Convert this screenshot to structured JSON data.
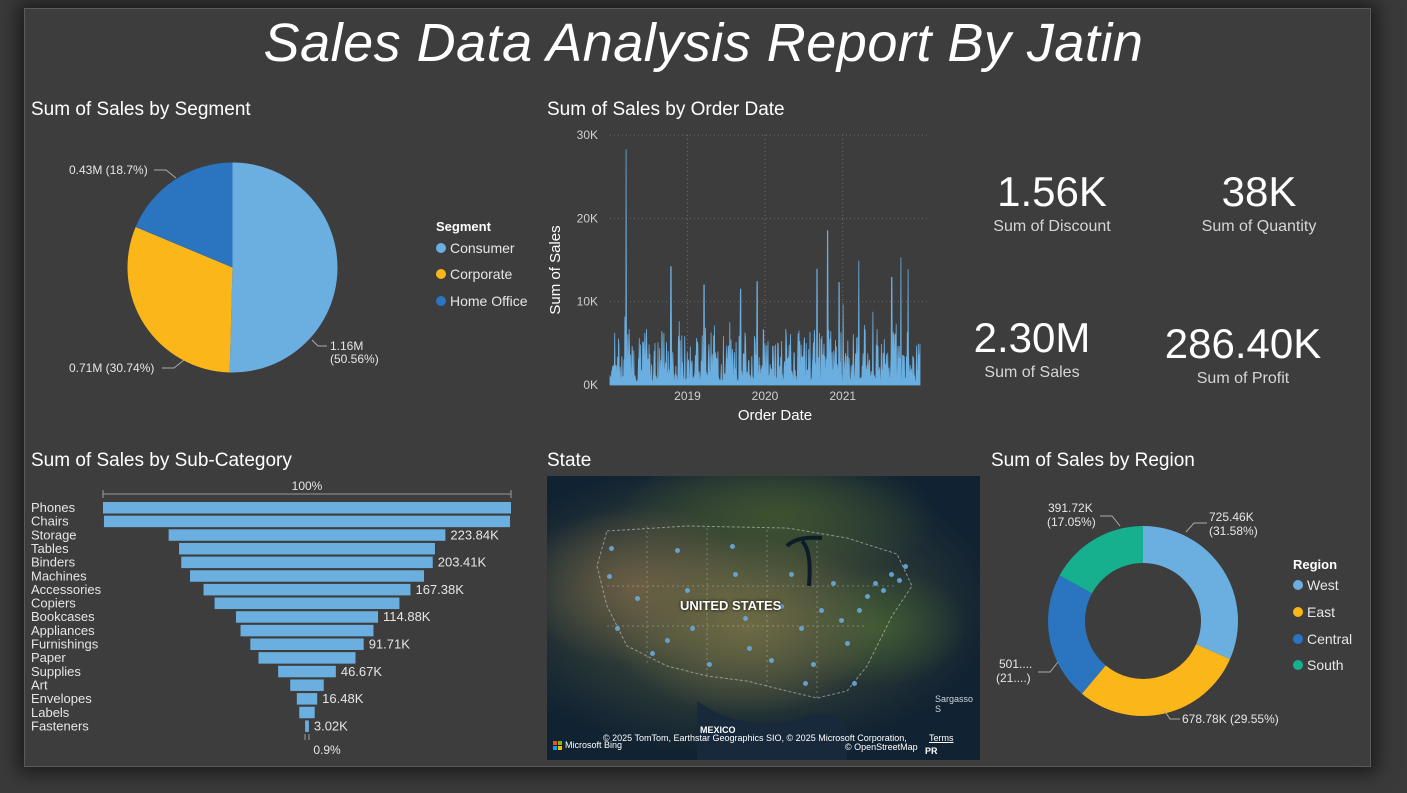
{
  "report_title": "Sales Data Analysis Report By Jatin",
  "segment_chart": {
    "title": "Sum of Sales by Segment",
    "legend_title": "Segment",
    "chart_data": {
      "type": "pie",
      "categories": [
        "Consumer",
        "Corporate",
        "Home Office"
      ],
      "values": [
        1.16,
        0.71,
        0.43
      ],
      "percents": [
        50.56,
        30.74,
        18.7
      ],
      "unit": "M",
      "colors": [
        "#6baee0",
        "#fbb619",
        "#2a74c0"
      ],
      "labels": {
        "consumer_line1": "1.16M",
        "consumer_line2": "(50.56%)",
        "corporate": "0.71M (30.74%)",
        "home_office": "0.43M (18.7%)"
      },
      "legend": "right"
    }
  },
  "order_date_chart": {
    "title": "Sum of Sales by Order Date",
    "chart_data": {
      "type": "area",
      "xlabel": "Order Date",
      "ylabel": "Sum of Sales",
      "x_ticks": [
        "2019",
        "2020",
        "2021"
      ],
      "y_ticks": [
        "0K",
        "10K",
        "20K",
        "30K"
      ],
      "ylim": [
        0,
        30000
      ],
      "xlim": [
        "2018-01-01",
        "2021-12-31"
      ],
      "color": "#6baee0",
      "grid": true,
      "peaks": [
        {
          "x": "2018-03-18",
          "y": 28300
        },
        {
          "x": "2018-10-15",
          "y": 14200
        },
        {
          "x": "2019-03-20",
          "y": 12000
        },
        {
          "x": "2019-09-08",
          "y": 11500
        },
        {
          "x": "2019-11-25",
          "y": 12400
        },
        {
          "x": "2020-09-02",
          "y": 13900
        },
        {
          "x": "2020-10-22",
          "y": 18500
        },
        {
          "x": "2020-12-15",
          "y": 12300
        },
        {
          "x": "2021-03-18",
          "y": 14900
        },
        {
          "x": "2021-08-20",
          "y": 12900
        },
        {
          "x": "2021-10-02",
          "y": 15300
        },
        {
          "x": "2021-11-05",
          "y": 13900
        }
      ]
    }
  },
  "kpis": [
    {
      "value": "1.56K",
      "label": "Sum of Discount"
    },
    {
      "value": "38K",
      "label": "Sum of Quantity"
    },
    {
      "value": "2.30M",
      "label": "Sum of Sales"
    },
    {
      "value": "286.40K",
      "label": "Sum of Profit"
    }
  ],
  "subcategory_chart": {
    "title": "Sum of Sales by Sub-Category",
    "top_label": "100%",
    "bottom_label": "0.9%",
    "chart_data": {
      "type": "bar",
      "orientation": "funnel",
      "categories": [
        "Phones",
        "Chairs",
        "Storage",
        "Tables",
        "Binders",
        "Machines",
        "Accessories",
        "Copiers",
        "Bookcases",
        "Appliances",
        "Furnishings",
        "Paper",
        "Supplies",
        "Art",
        "Envelopes",
        "Labels",
        "Fasteners"
      ],
      "values": [
        330007,
        328449,
        223844,
        206966,
        203413,
        189239,
        167380,
        149528,
        114880,
        107532,
        91705,
        78479,
        46674,
        27119,
        16476,
        12486,
        3024
      ],
      "data_labels": [
        "",
        "",
        "223.84K",
        "",
        "203.41K",
        "",
        "167.38K",
        "",
        "114.88K",
        "",
        "91.71K",
        "",
        "46.67K",
        "",
        "16.48K",
        "",
        "3.02K"
      ],
      "color": "#6baee0"
    }
  },
  "state_map": {
    "title": "State",
    "country_label": "UNITED STATES",
    "mexico_label": "MEXICO",
    "sea_label": "Sargasso S",
    "attribution": "© 2025 TomTom, Earthstar Geographics SIO, © 2025 Microsoft Corporation,",
    "terms": "Terms",
    "osm": "© OpenStreetMap",
    "bing": "Microsoft Bing",
    "pr": "PR"
  },
  "region_chart": {
    "title": "Sum of Sales by Region",
    "legend_title": "Region",
    "chart_data": {
      "type": "pie",
      "donut": true,
      "categories": [
        "West",
        "East",
        "Central",
        "South"
      ],
      "values": [
        725.46,
        678.78,
        501.24,
        391.72
      ],
      "percents": [
        31.58,
        29.55,
        21.82,
        17.05
      ],
      "unit": "K",
      "colors": [
        "#6baee0",
        "#fbb619",
        "#2a74c0",
        "#16b08f"
      ],
      "labels": {
        "west_line1": "725.46K",
        "west_line2": "(31.58%)",
        "east": "678.78K (29.55%)",
        "central_line1": "501....",
        "central_line2": "(21....)",
        "south_line1": "391.72K",
        "south_line2": "(17.05%)"
      },
      "legend": "right"
    }
  }
}
